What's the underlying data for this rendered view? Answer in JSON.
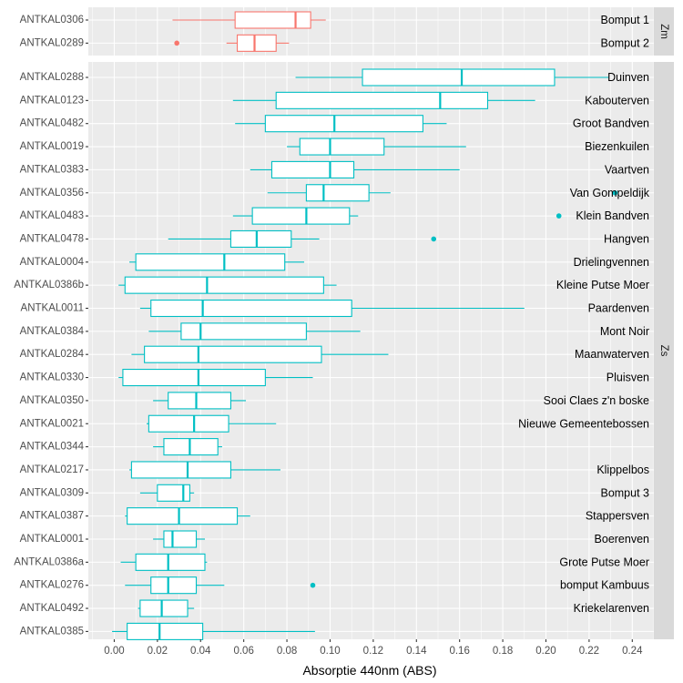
{
  "chart_data": {
    "type": "boxplot",
    "orientation": "horizontal",
    "xlabel": "Absorptie 440nm (ABS)",
    "xlim": [
      -0.012,
      0.25
    ],
    "x_ticks": [
      "0.00",
      "0.02",
      "0.04",
      "0.06",
      "0.08",
      "0.10",
      "0.12",
      "0.14",
      "0.16",
      "0.18",
      "0.20",
      "0.22",
      "0.24"
    ],
    "grid": true,
    "legend": "none",
    "facets": [
      {
        "strip": "Zm",
        "color": "#F8766D",
        "rows": [
          {
            "id": "ANTKAL0306",
            "site": "Bomput 1",
            "whisker_low": 0.027,
            "q1": 0.056,
            "median": 0.084,
            "q3": 0.091,
            "whisker_high": 0.098,
            "outliers": []
          },
          {
            "id": "ANTKAL0289",
            "site": "Bomput 2",
            "whisker_low": 0.052,
            "q1": 0.057,
            "median": 0.065,
            "q3": 0.075,
            "whisker_high": 0.081,
            "outliers": [
              0.029
            ]
          }
        ]
      },
      {
        "strip": "Zs",
        "color": "#00BFC4",
        "rows": [
          {
            "id": "ANTKAL0288",
            "site": "Duinven",
            "whisker_low": 0.084,
            "q1": 0.115,
            "median": 0.161,
            "q3": 0.204,
            "whisker_high": 0.229,
            "outliers": []
          },
          {
            "id": "ANTKAL0123",
            "site": "Kabouterven",
            "whisker_low": 0.055,
            "q1": 0.075,
            "median": 0.151,
            "q3": 0.173,
            "whisker_high": 0.195,
            "outliers": []
          },
          {
            "id": "ANTKAL0482",
            "site": "Groot Bandven",
            "whisker_low": 0.056,
            "q1": 0.07,
            "median": 0.102,
            "q3": 0.143,
            "whisker_high": 0.154,
            "outliers": []
          },
          {
            "id": "ANTKAL0019",
            "site": "Biezenkuilen",
            "whisker_low": 0.08,
            "q1": 0.086,
            "median": 0.1,
            "q3": 0.125,
            "whisker_high": 0.163,
            "outliers": []
          },
          {
            "id": "ANTKAL0383",
            "site": "Vaartven",
            "whisker_low": 0.063,
            "q1": 0.073,
            "median": 0.1,
            "q3": 0.111,
            "whisker_high": 0.16,
            "outliers": []
          },
          {
            "id": "ANTKAL0356",
            "site": "Van Gompeldijk",
            "whisker_low": 0.071,
            "q1": 0.089,
            "median": 0.097,
            "q3": 0.118,
            "whisker_high": 0.128,
            "outliers": [
              0.232
            ]
          },
          {
            "id": "ANTKAL0483",
            "site": "Klein Bandven",
            "whisker_low": 0.055,
            "q1": 0.064,
            "median": 0.089,
            "q3": 0.109,
            "whisker_high": 0.113,
            "outliers": [
              0.206
            ]
          },
          {
            "id": "ANTKAL0478",
            "site": "Hangven",
            "whisker_low": 0.025,
            "q1": 0.054,
            "median": 0.066,
            "q3": 0.082,
            "whisker_high": 0.095,
            "outliers": [
              0.148
            ]
          },
          {
            "id": "ANTKAL0004",
            "site": "Drielingvennen",
            "whisker_low": 0.007,
            "q1": 0.01,
            "median": 0.051,
            "q3": 0.079,
            "whisker_high": 0.088,
            "outliers": []
          },
          {
            "id": "ANTKAL0386b",
            "site": "Kleine Putse Moer",
            "whisker_low": 0.002,
            "q1": 0.005,
            "median": 0.043,
            "q3": 0.097,
            "whisker_high": 0.103,
            "outliers": []
          },
          {
            "id": "ANTKAL0011",
            "site": "Paardenven",
            "whisker_low": 0.012,
            "q1": 0.017,
            "median": 0.041,
            "q3": 0.11,
            "whisker_high": 0.19,
            "outliers": []
          },
          {
            "id": "ANTKAL0384",
            "site": "Mont Noir",
            "whisker_low": 0.016,
            "q1": 0.031,
            "median": 0.04,
            "q3": 0.089,
            "whisker_high": 0.114,
            "outliers": []
          },
          {
            "id": "ANTKAL0284",
            "site": "Maanwaterven",
            "whisker_low": 0.008,
            "q1": 0.014,
            "median": 0.039,
            "q3": 0.096,
            "whisker_high": 0.127,
            "outliers": []
          },
          {
            "id": "ANTKAL0330",
            "site": "Pluisven",
            "whisker_low": 0.002,
            "q1": 0.004,
            "median": 0.039,
            "q3": 0.07,
            "whisker_high": 0.092,
            "outliers": []
          },
          {
            "id": "ANTKAL0350",
            "site": "Sooi Claes z'n boske",
            "whisker_low": 0.018,
            "q1": 0.025,
            "median": 0.038,
            "q3": 0.054,
            "whisker_high": 0.061,
            "outliers": []
          },
          {
            "id": "ANTKAL0021",
            "site": "Nieuwe Gemeentebossen",
            "whisker_low": 0.015,
            "q1": 0.016,
            "median": 0.037,
            "q3": 0.053,
            "whisker_high": 0.075,
            "outliers": []
          },
          {
            "id": "ANTKAL0344",
            "site": "",
            "whisker_low": 0.018,
            "q1": 0.023,
            "median": 0.035,
            "q3": 0.048,
            "whisker_high": 0.05,
            "outliers": []
          },
          {
            "id": "ANTKAL0217",
            "site": "Klippelbos",
            "whisker_low": 0.007,
            "q1": 0.008,
            "median": 0.034,
            "q3": 0.054,
            "whisker_high": 0.077,
            "outliers": []
          },
          {
            "id": "ANTKAL0309",
            "site": "Bomput 3",
            "whisker_low": 0.012,
            "q1": 0.02,
            "median": 0.032,
            "q3": 0.035,
            "whisker_high": 0.037,
            "outliers": []
          },
          {
            "id": "ANTKAL0387",
            "site": "Stappersven",
            "whisker_low": 0.005,
            "q1": 0.006,
            "median": 0.03,
            "q3": 0.057,
            "whisker_high": 0.063,
            "outliers": []
          },
          {
            "id": "ANTKAL0001",
            "site": "Boerenven",
            "whisker_low": 0.018,
            "q1": 0.023,
            "median": 0.027,
            "q3": 0.038,
            "whisker_high": 0.042,
            "outliers": []
          },
          {
            "id": "ANTKAL0386a",
            "site": "Grote Putse Moer",
            "whisker_low": 0.003,
            "q1": 0.01,
            "median": 0.025,
            "q3": 0.042,
            "whisker_high": 0.043,
            "outliers": []
          },
          {
            "id": "ANTKAL0276",
            "site": "bomput Kambuus",
            "whisker_low": 0.005,
            "q1": 0.017,
            "median": 0.025,
            "q3": 0.038,
            "whisker_high": 0.051,
            "outliers": [
              0.092
            ]
          },
          {
            "id": "ANTKAL0492",
            "site": "Kriekelarenven",
            "whisker_low": 0.011,
            "q1": 0.012,
            "median": 0.022,
            "q3": 0.034,
            "whisker_high": 0.037,
            "outliers": []
          },
          {
            "id": "ANTKAL0385",
            "site": "",
            "whisker_low": -0.001,
            "q1": 0.006,
            "median": 0.021,
            "q3": 0.041,
            "whisker_high": 0.093,
            "outliers": []
          }
        ]
      }
    ]
  }
}
